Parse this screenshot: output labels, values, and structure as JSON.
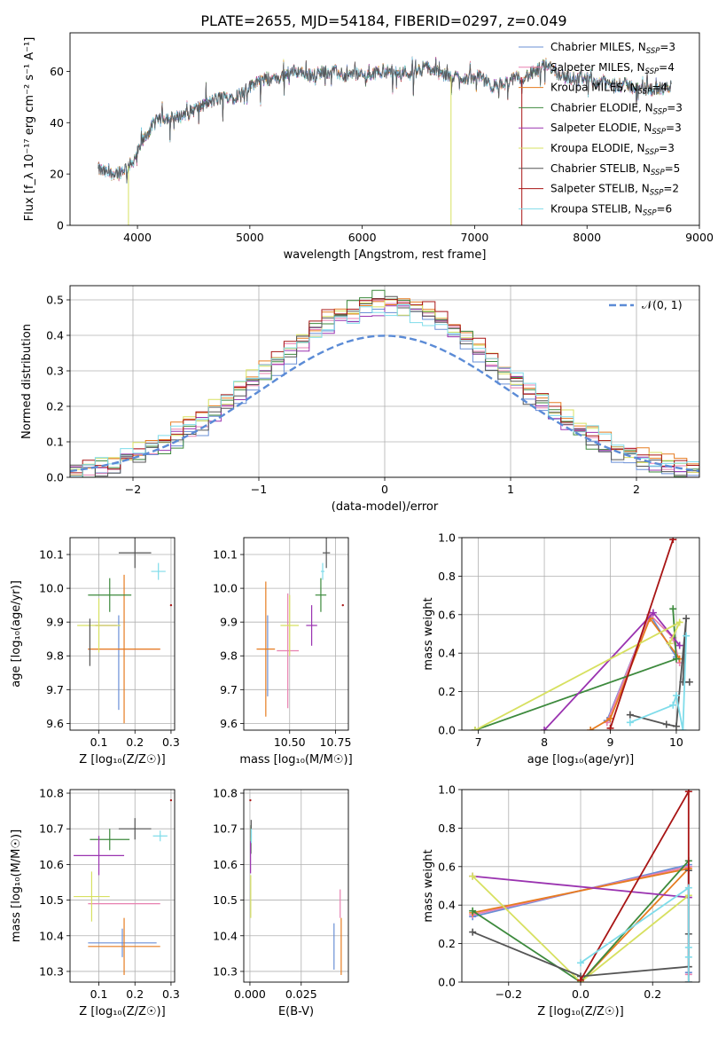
{
  "figure": {
    "title": "PLATE=2655, MJD=54184, FIBERID=0297, z=0.049"
  },
  "colors": {
    "Chabrier MILES": "#6a8fd6",
    "Salpeter MILES": "#e880b0",
    "Kroupa MILES": "#e67c20",
    "Chabrier ELODIE": "#3d8a3d",
    "Salpeter ELODIE": "#9a33b0",
    "Kroupa ELODIE": "#d7e060",
    "Chabrier STELIB": "#555555",
    "Salpeter STELIB": "#a81515",
    "Kroupa STELIB": "#7fdcea",
    "gaussian": "#5b8bd6"
  },
  "chart_data": [
    {
      "id": "spectrum",
      "type": "line",
      "xlabel": "wavelength [Angstrom, rest frame]",
      "ylabel": "Flux [f_λ 10⁻¹⁷ erg cm⁻² s⁻¹ A⁻¹]",
      "xlim": [
        3400,
        9000
      ],
      "ylim": [
        0,
        75
      ],
      "xticks": [
        4000,
        5000,
        6000,
        7000,
        8000,
        9000
      ],
      "yticks": [
        0,
        20,
        40,
        60
      ],
      "legend_position": "upper right",
      "legend": [
        {
          "label": "Chabrier MILES, N_SSP=3",
          "base": "Chabrier MILES, N",
          "sub": "SSP",
          "suffix": "=3"
        },
        {
          "label": "Salpeter MILES, N_SSP=4",
          "base": "Salpeter MILES, N",
          "sub": "SSP",
          "suffix": "=4"
        },
        {
          "label": "Kroupa MILES, N_SSP=4",
          "base": "Kroupa MILES, N",
          "sub": "SSP",
          "suffix": "=4"
        },
        {
          "label": "Chabrier ELODIE, N_SSP=3",
          "base": "Chabrier ELODIE, N",
          "sub": "SSP",
          "suffix": "=3"
        },
        {
          "label": "Salpeter ELODIE, N_SSP=3",
          "base": "Salpeter ELODIE, N",
          "sub": "SSP",
          "suffix": "=3"
        },
        {
          "label": "Kroupa ELODIE, N_SSP=3",
          "base": "Kroupa ELODIE, N",
          "sub": "SSP",
          "suffix": "=3"
        },
        {
          "label": "Chabrier STELIB, N_SSP=5",
          "base": "Chabrier STELIB, N",
          "sub": "SSP",
          "suffix": "=5"
        },
        {
          "label": "Salpeter STELIB, N_SSP=2",
          "base": "Salpeter STELIB, N",
          "sub": "SSP",
          "suffix": "=2"
        },
        {
          "label": "Kroupa STELIB, N_SSP=6",
          "base": "Kroupa STELIB, N",
          "sub": "SSP",
          "suffix": "=6"
        }
      ],
      "continuum": [
        [
          3650,
          22
        ],
        [
          3750,
          20
        ],
        [
          3850,
          21
        ],
        [
          3950,
          24
        ],
        [
          4050,
          33
        ],
        [
          4150,
          40
        ],
        [
          4250,
          42
        ],
        [
          4350,
          42
        ],
        [
          4450,
          44
        ],
        [
          4550,
          46
        ],
        [
          4650,
          48
        ],
        [
          4750,
          50
        ],
        [
          4850,
          50
        ],
        [
          4950,
          52
        ],
        [
          5050,
          56
        ],
        [
          5150,
          57
        ],
        [
          5250,
          57
        ],
        [
          5350,
          60
        ],
        [
          5450,
          60
        ],
        [
          5550,
          58
        ],
        [
          5650,
          60
        ],
        [
          5750,
          60
        ],
        [
          5850,
          58
        ],
        [
          5950,
          59
        ],
        [
          6050,
          58
        ],
        [
          6150,
          60
        ],
        [
          6250,
          60
        ],
        [
          6350,
          60
        ],
        [
          6450,
          59
        ],
        [
          6550,
          62
        ],
        [
          6650,
          60
        ],
        [
          6750,
          58
        ],
        [
          6850,
          58
        ],
        [
          6950,
          57
        ],
        [
          7050,
          58
        ],
        [
          7150,
          54
        ],
        [
          7250,
          55
        ],
        [
          7350,
          57
        ],
        [
          7450,
          58
        ],
        [
          7550,
          60
        ],
        [
          7650,
          63
        ],
        [
          7750,
          59
        ],
        [
          7850,
          57
        ],
        [
          7950,
          58
        ],
        [
          8050,
          56
        ],
        [
          8150,
          56
        ],
        [
          8250,
          54
        ],
        [
          8350,
          55
        ],
        [
          8450,
          53
        ],
        [
          8550,
          53
        ],
        [
          8650,
          53
        ],
        [
          8750,
          54
        ]
      ],
      "vertical_drops": [
        {
          "x": 3920,
          "ymin": 0,
          "series": "Kroupa ELODIE"
        },
        {
          "x": 6790,
          "ymin": 0,
          "series": "Kroupa ELODIE"
        },
        {
          "x": 7420,
          "ymin": 0,
          "series": "Salpeter STELIB"
        }
      ]
    },
    {
      "id": "residuals",
      "type": "step",
      "xlabel": "(data-model)/error",
      "ylabel": "Normed distribution",
      "xlim": [
        -2.5,
        2.5
      ],
      "ylim": [
        0,
        0.54
      ],
      "xticks": [
        -2,
        -1,
        0,
        1,
        2
      ],
      "yticks": [
        0.0,
        0.1,
        0.2,
        0.3,
        0.4,
        0.5
      ],
      "grid": true,
      "legend": [
        {
          "label": "𝒩(0, 1)",
          "style": "dashed"
        }
      ],
      "gaussian": {
        "mu": 0,
        "sigma": 1
      }
    },
    {
      "id": "age_vs_Z",
      "type": "errorbar",
      "xlabel": "Z [log₁₀(Z/Z☉)]",
      "ylabel": "age  [log₁₀(age/yr)]",
      "xlim": [
        0.02,
        0.31
      ],
      "ylim": [
        9.58,
        10.15
      ],
      "xticks": [
        0.1,
        0.2,
        0.3
      ],
      "yticks": [
        9.6,
        9.7,
        9.8,
        9.9,
        10.0,
        10.1
      ],
      "grid": true,
      "points": [
        {
          "series": "Chabrier MILES",
          "x": 0.155,
          "xerr": 0.0,
          "y": 9.78,
          "yerr": 0.14
        },
        {
          "series": "Salpeter MILES",
          "x": 0.17,
          "xerr": 0.1,
          "y": 9.82,
          "yerr": 0.0
        },
        {
          "series": "Kroupa MILES",
          "x": 0.17,
          "xerr": 0.1,
          "y": 9.82,
          "yerr": 0.22
        },
        {
          "series": "Chabrier ELODIE",
          "x": 0.13,
          "xerr": 0.06,
          "y": 9.98,
          "yerr": 0.05
        },
        {
          "series": "Salpeter ELODIE",
          "x": 0.12,
          "xerr": 0.03,
          "y": 9.89,
          "yerr": 0.0
        },
        {
          "series": "Kroupa ELODIE",
          "x": 0.1,
          "xerr": 0.06,
          "y": 9.89,
          "yerr": 0.08
        },
        {
          "series": "Chabrier STELIB",
          "x": 0.2,
          "xerr": 0.045,
          "y": 10.105,
          "yerr": 0.045
        },
        {
          "series": "Salpeter STELIB",
          "x": 0.3,
          "xerr": 0.0,
          "y": 9.95,
          "yerr": 0.0
        },
        {
          "series": "Kroupa STELIB",
          "x": 0.265,
          "xerr": 0.02,
          "y": 10.05,
          "yerr": 0.025
        },
        {
          "series": "Chabrier STELIB",
          "x": 0.075,
          "xerr": 0.0,
          "y": 9.84,
          "yerr": 0.07
        }
      ]
    },
    {
      "id": "age_vs_mass",
      "type": "errorbar",
      "xlabel": "mass [log₁₀(M/M☉)]",
      "ylabel": "",
      "xlim": [
        10.25,
        10.82
      ],
      "ylim": [
        9.58,
        10.15
      ],
      "xticks": [
        10.5,
        10.75
      ],
      "xticklabels": [
        "10.50",
        "10.75"
      ],
      "yticks": [
        9.6,
        9.7,
        9.8,
        9.9,
        10.0,
        10.1
      ],
      "grid": true,
      "points": [
        {
          "series": "Chabrier MILES",
          "x": 10.38,
          "xerr": 0.0,
          "y": 9.8,
          "yerr": 0.12
        },
        {
          "series": "Salpeter MILES",
          "x": 10.49,
          "xerr": 0.06,
          "y": 9.815,
          "yerr": 0.17
        },
        {
          "series": "Kroupa MILES",
          "x": 10.37,
          "xerr": 0.05,
          "y": 9.82,
          "yerr": 0.2
        },
        {
          "series": "Chabrier ELODIE",
          "x": 10.67,
          "xerr": 0.03,
          "y": 9.98,
          "yerr": 0.05
        },
        {
          "series": "Salpeter ELODIE",
          "x": 10.62,
          "xerr": 0.03,
          "y": 9.89,
          "yerr": 0.06
        },
        {
          "series": "Kroupa ELODIE",
          "x": 10.5,
          "xerr": 0.05,
          "y": 9.89,
          "yerr": 0.09
        },
        {
          "series": "Chabrier STELIB",
          "x": 10.7,
          "xerr": 0.02,
          "y": 10.105,
          "yerr": 0.045
        },
        {
          "series": "Salpeter STELIB",
          "x": 10.79,
          "xerr": 0.0,
          "y": 9.95,
          "yerr": 0.0
        },
        {
          "series": "Kroupa STELIB",
          "x": 10.68,
          "xerr": 0.01,
          "y": 10.05,
          "yerr": 0.025
        }
      ]
    },
    {
      "id": "massweight_vs_age",
      "type": "line",
      "xlabel": "age  [log₁₀(age/yr)]",
      "ylabel": "mass weight",
      "xlim": [
        6.75,
        10.35
      ],
      "ylim": [
        0,
        1.0
      ],
      "xticks": [
        7,
        8,
        9,
        10
      ],
      "yticks": [
        0.0,
        0.2,
        0.4,
        0.6,
        0.8,
        1.0
      ],
      "grid": true,
      "series": [
        {
          "name": "Chabrier MILES",
          "x": [
            8.95,
            9.6,
            10.0
          ],
          "y": [
            0.05,
            0.6,
            0.38
          ]
        },
        {
          "name": "Salpeter MILES",
          "x": [
            8.95,
            9.6,
            9.95,
            10.05
          ],
          "y": [
            0.04,
            0.6,
            0.48,
            0.35
          ]
        },
        {
          "name": "Kroupa MILES",
          "x": [
            8.7,
            9.0,
            9.6,
            10.05
          ],
          "y": [
            0.0,
            0.06,
            0.58,
            0.37
          ]
        },
        {
          "name": "Chabrier ELODIE",
          "x": [
            6.95,
            10.0,
            9.95
          ],
          "y": [
            0.0,
            0.37,
            0.63
          ]
        },
        {
          "name": "Salpeter ELODIE",
          "x": [
            8.0,
            9.65,
            10.05
          ],
          "y": [
            0.0,
            0.61,
            0.44
          ]
        },
        {
          "name": "Kroupa ELODIE",
          "x": [
            6.95,
            10.05,
            9.9
          ],
          "y": [
            0.0,
            0.56,
            0.45
          ]
        },
        {
          "name": "Chabrier STELIB",
          "x": [
            9.3,
            9.85,
            10.0,
            10.15,
            10.1,
            10.2
          ],
          "y": [
            0.08,
            0.03,
            0.02,
            0.58,
            0.25,
            0.25
          ]
        },
        {
          "name": "Salpeter STELIB",
          "x": [
            9.0,
            9.95
          ],
          "y": [
            0.01,
            0.99
          ]
        },
        {
          "name": "Kroupa STELIB",
          "x": [
            9.3,
            9.95,
            10.0,
            10.1,
            10.15
          ],
          "y": [
            0.04,
            0.13,
            0.18,
            0.0,
            0.49
          ]
        }
      ]
    },
    {
      "id": "mass_vs_Z",
      "type": "errorbar",
      "xlabel": "Z [log₁₀(Z/Z☉)]",
      "ylabel": "mass [log₁₀(M/M☉)]",
      "xlim": [
        0.02,
        0.31
      ],
      "ylim": [
        10.27,
        10.81
      ],
      "xticks": [
        0.1,
        0.2,
        0.3
      ],
      "yticks": [
        10.3,
        10.4,
        10.5,
        10.6,
        10.7,
        10.8
      ],
      "grid": true,
      "points": [
        {
          "series": "Chabrier MILES",
          "x": 0.165,
          "xerr": 0.095,
          "y": 10.38,
          "yerr": 0.04
        },
        {
          "series": "Salpeter MILES",
          "x": 0.17,
          "xerr": 0.1,
          "y": 10.49,
          "yerr": 0.0
        },
        {
          "series": "Kroupa MILES",
          "x": 0.17,
          "xerr": 0.1,
          "y": 10.37,
          "yerr": 0.08
        },
        {
          "series": "Chabrier ELODIE",
          "x": 0.13,
          "xerr": 0.055,
          "y": 10.67,
          "yerr": 0.03
        },
        {
          "series": "Salpeter ELODIE",
          "x": 0.1,
          "xerr": 0.07,
          "y": 10.625,
          "yerr": 0.055
        },
        {
          "series": "Kroupa ELODIE",
          "x": 0.08,
          "xerr": 0.05,
          "y": 10.51,
          "yerr": 0.07
        },
        {
          "series": "Chabrier STELIB",
          "x": 0.2,
          "xerr": 0.045,
          "y": 10.7,
          "yerr": 0.03
        },
        {
          "series": "Salpeter STELIB",
          "x": 0.3,
          "xerr": 0.0,
          "y": 10.78,
          "yerr": 0.0
        },
        {
          "series": "Kroupa STELIB",
          "x": 0.27,
          "xerr": 0.02,
          "y": 10.68,
          "yerr": 0.015
        }
      ]
    },
    {
      "id": "mass_vs_EBV",
      "type": "errorbar",
      "xlabel": "E(B-V)",
      "ylabel": "",
      "xlim": [
        -0.003,
        0.048
      ],
      "ylim": [
        10.27,
        10.81
      ],
      "xticks": [
        0.0,
        0.025
      ],
      "xticklabels": [
        "0.000",
        "0.025"
      ],
      "yticks": [
        10.3,
        10.4,
        10.5,
        10.6,
        10.7,
        10.8
      ],
      "grid": true,
      "points": [
        {
          "series": "Chabrier MILES",
          "x": 0.041,
          "xerr": 0.0,
          "y": 10.37,
          "yerr": 0.065
        },
        {
          "series": "Salpeter MILES",
          "x": 0.044,
          "xerr": 0.0,
          "y": 10.49,
          "yerr": 0.04
        },
        {
          "series": "Kroupa MILES",
          "x": 0.0445,
          "xerr": 0.0,
          "y": 10.37,
          "yerr": 0.08
        },
        {
          "series": "Chabrier ELODIE",
          "x": 0.0005,
          "xerr": 0.0,
          "y": 10.67,
          "yerr": 0.04
        },
        {
          "series": "Salpeter ELODIE",
          "x": 0.0003,
          "xerr": 0.0,
          "y": 10.62,
          "yerr": 0.045
        },
        {
          "series": "Kroupa ELODIE",
          "x": 0.0004,
          "xerr": 0.0,
          "y": 10.51,
          "yerr": 0.06
        },
        {
          "series": "Chabrier STELIB",
          "x": 0.0006,
          "xerr": 0.0,
          "y": 10.7,
          "yerr": 0.025
        },
        {
          "series": "Salpeter STELIB",
          "x": 0.0002,
          "xerr": 0.0,
          "y": 10.78,
          "yerr": 0.0
        },
        {
          "series": "Kroupa STELIB",
          "x": 0.0007,
          "xerr": 0.0,
          "y": 10.68,
          "yerr": 0.02
        }
      ]
    },
    {
      "id": "massweight_vs_Z",
      "type": "line",
      "xlabel": "Z [log₁₀(Z/Z☉)]",
      "ylabel": "mass weight",
      "xlim": [
        -0.33,
        0.33
      ],
      "ylim": [
        0,
        1.0
      ],
      "xticks": [
        -0.2,
        0.0,
        0.2
      ],
      "xticklabels": [
        "−0.2",
        "0.0",
        "0.2"
      ],
      "yticks": [
        0.0,
        0.2,
        0.4,
        0.6,
        0.8,
        1.0
      ],
      "grid": true,
      "series": [
        {
          "name": "Chabrier MILES",
          "x": [
            -0.3,
            0.3,
            0.3
          ],
          "y": [
            0.34,
            0.61,
            0.05
          ]
        },
        {
          "name": "Salpeter MILES",
          "x": [
            -0.3,
            0.3,
            0.3
          ],
          "y": [
            0.35,
            0.6,
            0.04
          ]
        },
        {
          "name": "Kroupa MILES",
          "x": [
            -0.3,
            0.3,
            0.0
          ],
          "y": [
            0.36,
            0.59,
            0.0
          ]
        },
        {
          "name": "Chabrier ELODIE",
          "x": [
            -0.3,
            0.0,
            0.3
          ],
          "y": [
            0.37,
            0.0,
            0.63
          ]
        },
        {
          "name": "Salpeter ELODIE",
          "x": [
            -0.3,
            0.3
          ],
          "y": [
            0.55,
            0.44
          ]
        },
        {
          "name": "Kroupa ELODIE",
          "x": [
            -0.3,
            0.0,
            0.3
          ],
          "y": [
            0.55,
            0.0,
            0.45
          ]
        },
        {
          "name": "Chabrier STELIB",
          "x": [
            -0.3,
            0.0,
            0.3,
            0.3,
            0.3
          ],
          "y": [
            0.26,
            0.03,
            0.08,
            0.58,
            0.25
          ]
        },
        {
          "name": "Salpeter STELIB",
          "x": [
            0.0,
            0.3,
            0.3
          ],
          "y": [
            0.01,
            0.99,
            0.0
          ]
        },
        {
          "name": "Kroupa STELIB",
          "x": [
            0.0,
            0.3,
            0.3,
            0.3,
            0.3
          ],
          "y": [
            0.1,
            0.49,
            0.18,
            0.13,
            0.0
          ]
        }
      ]
    }
  ]
}
